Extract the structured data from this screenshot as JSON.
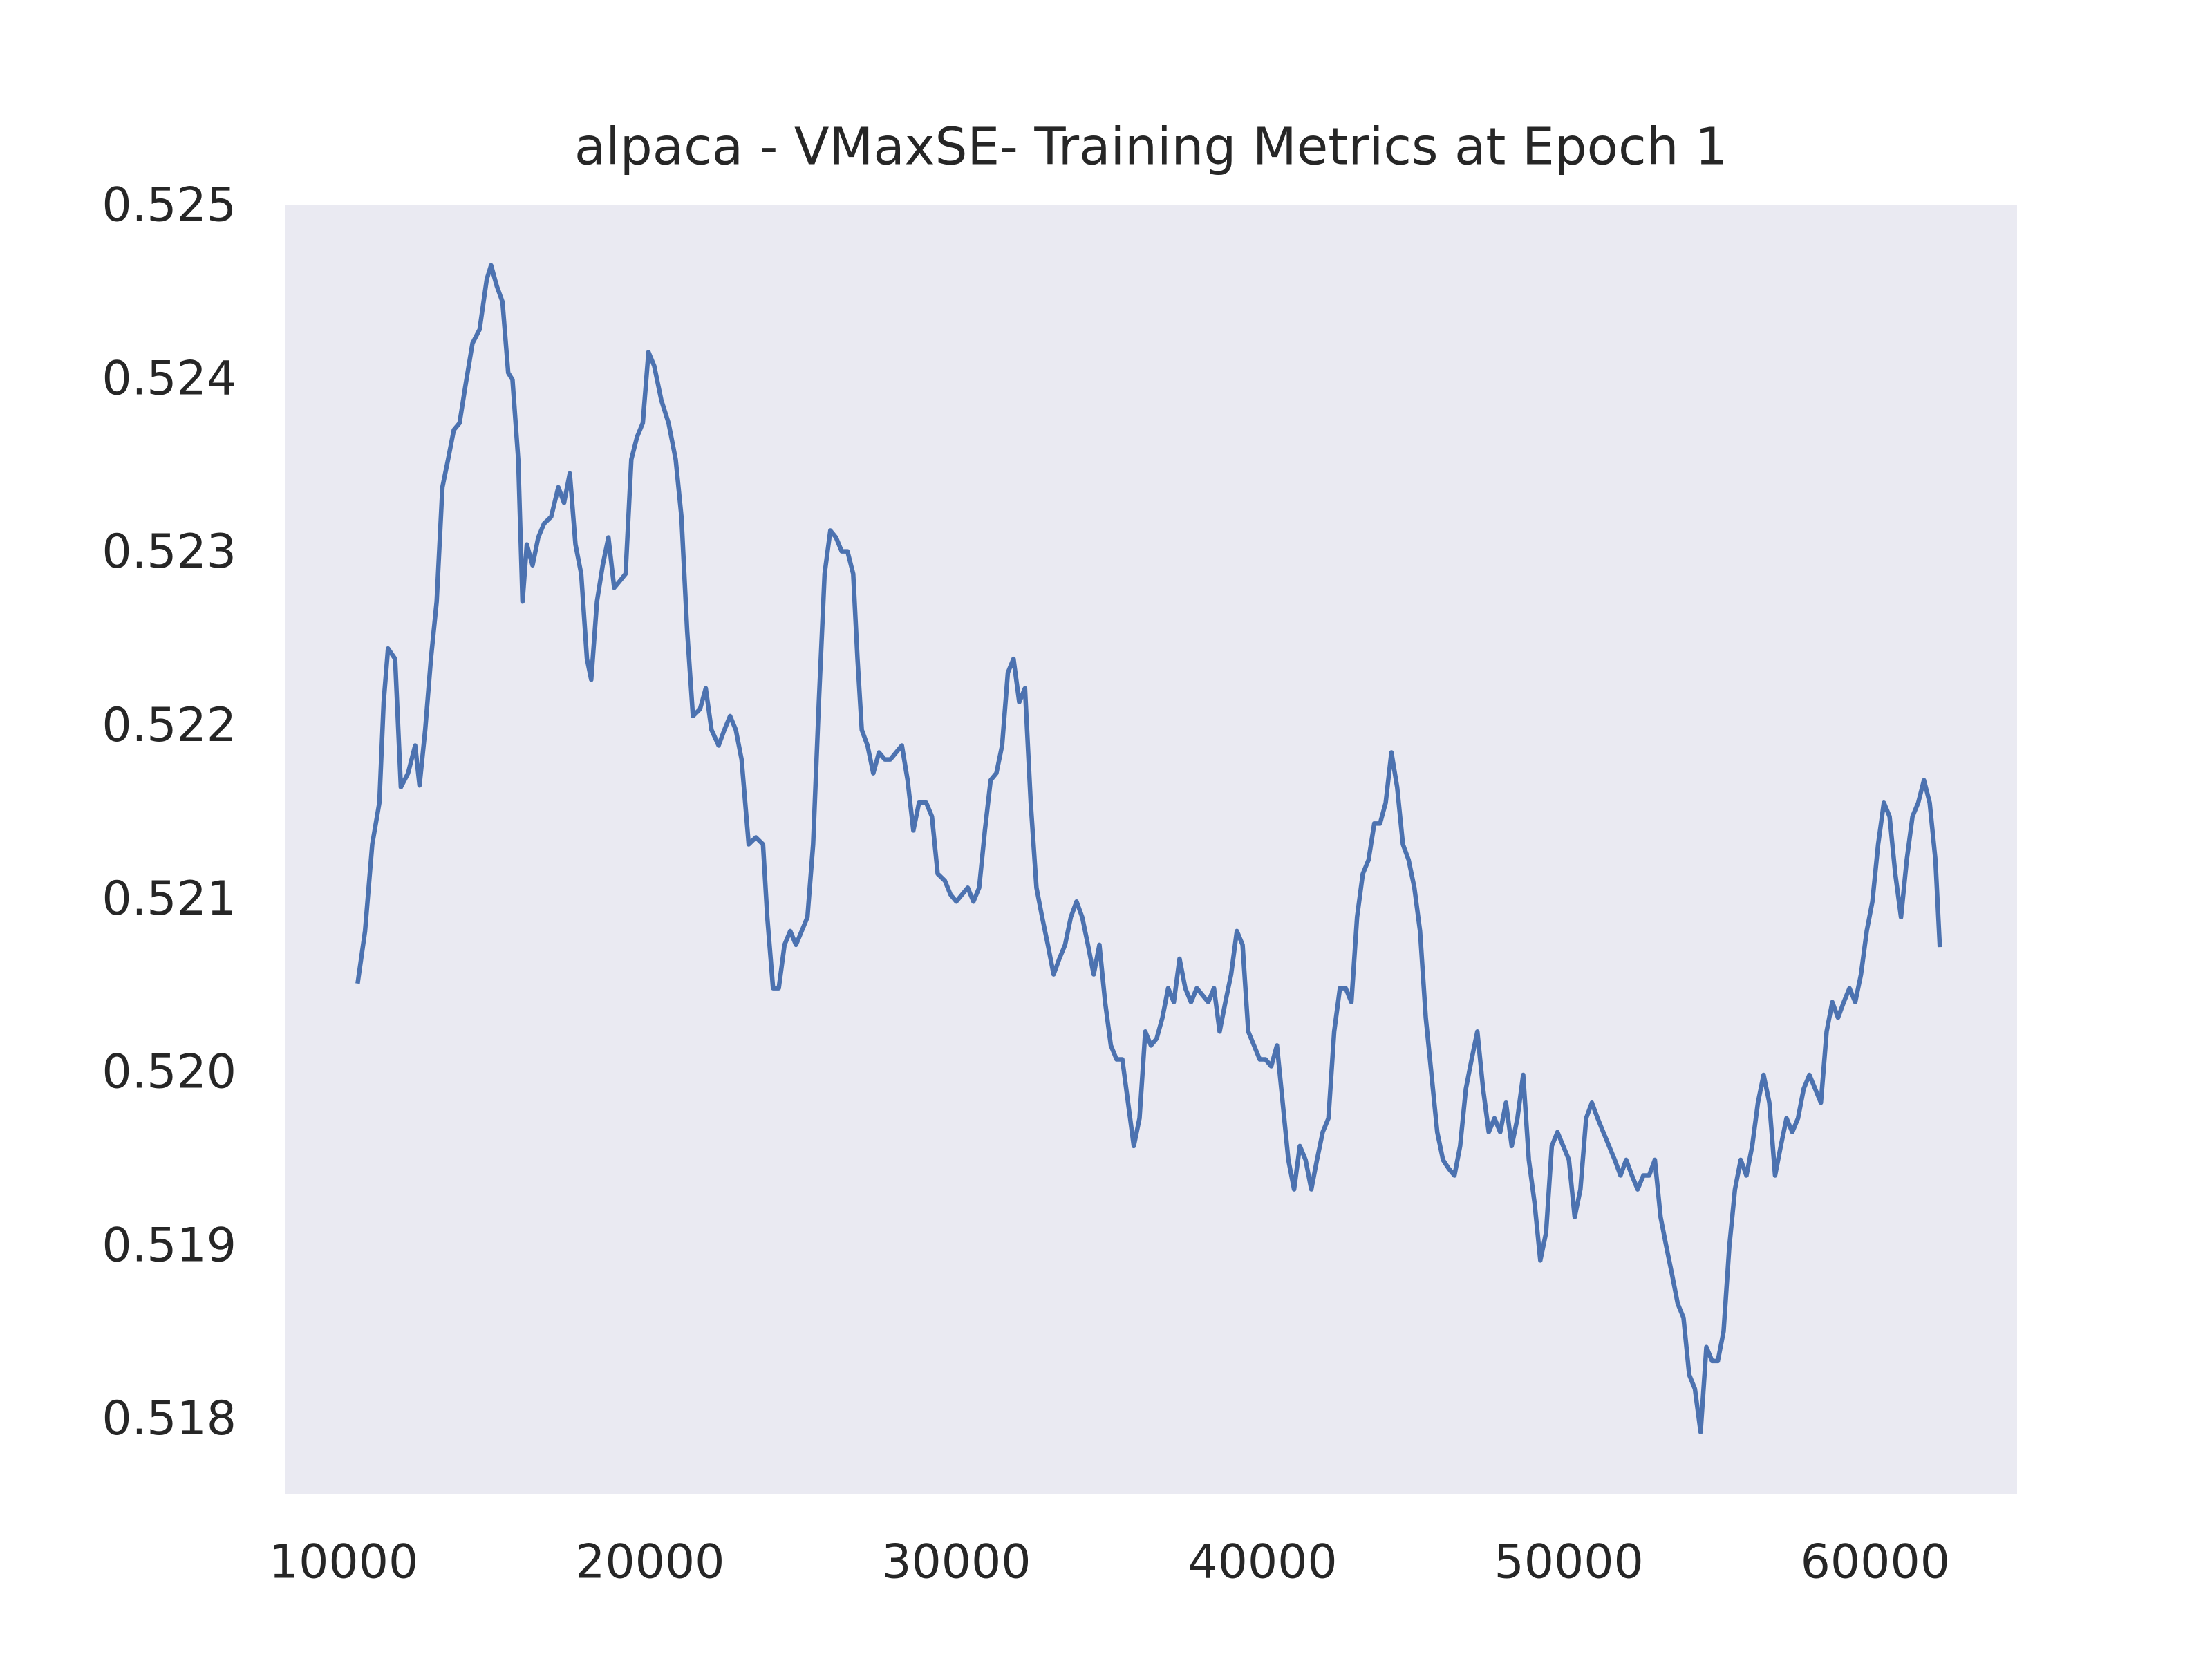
{
  "chart_data": {
    "type": "line",
    "title": "alpaca - VMaxSE- Training Metrics at Epoch 1",
    "xlim": [
      8080,
      64630
    ],
    "ylim": [
      0.51758,
      0.52502
    ],
    "xticks": [
      10000,
      20000,
      30000,
      40000,
      50000,
      60000
    ],
    "yticks": [
      0.518,
      0.519,
      {
        "value": 0.52,
        "label": "0.520"
      },
      0.521,
      0.522,
      0.523,
      0.524,
      0.525
    ],
    "grid": false,
    "background": "#eaeaf2",
    "series": [
      {
        "color": "#4c72b0",
        "x": [
          10467,
          10701,
          10935,
          11168,
          11308,
          11449,
          11682,
          11869,
          12103,
          12337,
          12477,
          12664,
          12851,
          13037,
          13224,
          13411,
          13598,
          13785,
          13972,
          14206,
          14439,
          14673,
          14813,
          15000,
          15187,
          15374,
          15514,
          15701,
          15841,
          15981,
          16168,
          16355,
          16542,
          16776,
          17010,
          17196,
          17383,
          17570,
          17757,
          17944,
          18084,
          18271,
          18458,
          18645,
          18832,
          19019,
          19206,
          19393,
          19579,
          19766,
          19953,
          20140,
          20374,
          20608,
          20841,
          21028,
          21215,
          21402,
          21636,
          21823,
          22010,
          22243,
          22430,
          22617,
          22804,
          22991,
          23225,
          23458,
          23692,
          23832,
          24019,
          24206,
          24393,
          24580,
          24767,
          24954,
          25141,
          25327,
          25514,
          25701,
          25888,
          26075,
          26262,
          26449,
          26636,
          26776,
          26916,
          27103,
          27290,
          27477,
          27664,
          27851,
          28038,
          28225,
          28412,
          28599,
          28785,
          29019,
          29206,
          29393,
          29627,
          29813,
          30000,
          30187,
          30374,
          30561,
          30748,
          30935,
          31122,
          31309,
          31496,
          31683,
          31870,
          32057,
          32243,
          32430,
          32617,
          32804,
          32991,
          33178,
          33365,
          33552,
          33739,
          33926,
          34113,
          34300,
          34487,
          34674,
          34860,
          35047,
          35234,
          35421,
          35608,
          35795,
          35982,
          36169,
          36356,
          36543,
          36730,
          36916,
          37103,
          37290,
          37477,
          37664,
          37851,
          38038,
          38225,
          38412,
          38599,
          38786,
          38973,
          39160,
          39347,
          39533,
          39720,
          39907,
          40094,
          40281,
          40468,
          40655,
          40842,
          41029,
          41216,
          41403,
          41590,
          41776,
          41963,
          42150,
          42337,
          42524,
          42711,
          42898,
          43085,
          43272,
          43459,
          43646,
          43833,
          44019,
          44206,
          44393,
          44580,
          44767,
          44954,
          45141,
          45328,
          45515,
          45702,
          45889,
          46076,
          46263,
          46449,
          46636,
          46823,
          47010,
          47197,
          47384,
          47571,
          47758,
          47945,
          48132,
          48319,
          48506,
          48692,
          48879,
          49066,
          49253,
          49440,
          49627,
          49814,
          50001,
          50188,
          50375,
          50562,
          50749,
          50936,
          51122,
          51309,
          51496,
          51683,
          51870,
          52057,
          52244,
          52431,
          52618,
          52805,
          52992,
          53179,
          53365,
          53552,
          53739,
          53926,
          54113,
          54300,
          54487,
          54674,
          54861,
          55048,
          55235,
          55422,
          55608,
          55795,
          55982,
          56169,
          56356,
          56543,
          56730,
          56917,
          57104,
          57291,
          57478,
          57665,
          57851,
          58038,
          58225,
          58412,
          58599,
          58786,
          58973,
          59160,
          59347,
          59534,
          59721,
          59908,
          60094,
          60281,
          60468,
          60655,
          60842,
          61029,
          61216,
          61403,
          61590,
          61777,
          61964,
          62104
        ],
        "values": [
          0.52054,
          0.52083,
          0.52133,
          0.52157,
          0.52215,
          0.52246,
          0.5224,
          0.52166,
          0.52174,
          0.5219,
          0.52167,
          0.52199,
          0.5224,
          0.52273,
          0.52339,
          0.52355,
          0.52372,
          0.52376,
          0.52397,
          0.52422,
          0.5243,
          0.52459,
          0.52467,
          0.52455,
          0.52446,
          0.52405,
          0.52401,
          0.52355,
          0.52273,
          0.52306,
          0.52294,
          0.5231,
          0.52318,
          0.52322,
          0.52339,
          0.5233,
          0.52347,
          0.52306,
          0.52289,
          0.5224,
          0.52228,
          0.52273,
          0.52294,
          0.5231,
          0.52281,
          0.52285,
          0.52289,
          0.52355,
          0.52368,
          0.52376,
          0.52417,
          0.52409,
          0.52389,
          0.52376,
          0.52355,
          0.52322,
          0.52256,
          0.52207,
          0.52211,
          0.52223,
          0.52199,
          0.5219,
          0.52199,
          0.52207,
          0.52199,
          0.52182,
          0.52133,
          0.52137,
          0.52133,
          0.52091,
          0.5205,
          0.5205,
          0.52075,
          0.52083,
          0.52075,
          0.52083,
          0.52091,
          0.52133,
          0.52215,
          0.52289,
          0.52314,
          0.5231,
          0.52302,
          0.52302,
          0.52289,
          0.5224,
          0.52199,
          0.5219,
          0.52174,
          0.52186,
          0.52182,
          0.52182,
          0.52186,
          0.5219,
          0.5217,
          0.52141,
          0.52157,
          0.52157,
          0.52149,
          0.52116,
          0.52112,
          0.52104,
          0.521,
          0.52104,
          0.52108,
          0.521,
          0.52108,
          0.52141,
          0.5217,
          0.52174,
          0.5219,
          0.52232,
          0.5224,
          0.52215,
          0.52223,
          0.52157,
          0.52108,
          0.52091,
          0.52075,
          0.52058,
          0.52067,
          0.52075,
          0.52091,
          0.521,
          0.52091,
          0.52075,
          0.52058,
          0.52075,
          0.52042,
          0.52017,
          0.52009,
          0.52009,
          0.51984,
          0.51959,
          0.51975,
          0.52025,
          0.52017,
          0.52021,
          0.52033,
          0.5205,
          0.52042,
          0.52067,
          0.5205,
          0.52042,
          0.5205,
          0.52046,
          0.52042,
          0.5205,
          0.52025,
          0.52042,
          0.52058,
          0.52083,
          0.52075,
          0.52025,
          0.52017,
          0.52009,
          0.52009,
          0.52005,
          0.52017,
          0.51984,
          0.51951,
          0.51934,
          0.51959,
          0.51951,
          0.51934,
          0.51951,
          0.51967,
          0.51975,
          0.52025,
          0.5205,
          0.5205,
          0.52042,
          0.52091,
          0.52116,
          0.52124,
          0.52145,
          0.52145,
          0.52157,
          0.52186,
          0.52166,
          0.52133,
          0.52124,
          0.52108,
          0.52083,
          0.52033,
          0.52,
          0.51967,
          0.51951,
          0.51946,
          0.51942,
          0.51959,
          0.51992,
          0.52009,
          0.52025,
          0.51992,
          0.51967,
          0.51975,
          0.51967,
          0.51984,
          0.51959,
          0.51975,
          0.52,
          0.51951,
          0.51926,
          0.51893,
          0.51909,
          0.51959,
          0.51967,
          0.51959,
          0.51951,
          0.51918,
          0.51934,
          0.51975,
          0.51984,
          0.51975,
          0.51967,
          0.51959,
          0.51951,
          0.51942,
          0.51951,
          0.51942,
          0.51934,
          0.51942,
          0.51942,
          0.51951,
          0.51918,
          0.51901,
          0.51885,
          0.51868,
          0.5186,
          0.51827,
          0.51819,
          0.51794,
          0.51843,
          0.51835,
          0.51835,
          0.51852,
          0.51901,
          0.51934,
          0.51951,
          0.51942,
          0.51959,
          0.51984,
          0.52,
          0.51984,
          0.51942,
          0.51959,
          0.51975,
          0.51967,
          0.51975,
          0.51992,
          0.52,
          0.51992,
          0.51984,
          0.52025,
          0.52042,
          0.52033,
          0.52042,
          0.5205,
          0.52042,
          0.52058,
          0.52083,
          0.521,
          0.52133,
          0.52157,
          0.52149,
          0.52116,
          0.52091,
          0.52124,
          0.52149,
          0.52157,
          0.5217,
          0.52157,
          0.52124,
          0.52075
        ]
      }
    ]
  }
}
